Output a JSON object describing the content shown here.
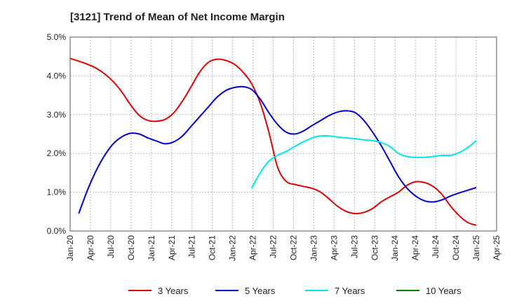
{
  "chart_data": {
    "type": "line",
    "title": "[3121]  Trend of Mean of Net Income Margin",
    "xlabel": "",
    "ylabel": "",
    "ylim": [
      0,
      5
    ],
    "xlim": [
      "Jan-20",
      "Apr-25"
    ],
    "grid": true,
    "legend_position": "bottom",
    "y_ticks": [
      "0.0%",
      "1.0%",
      "2.0%",
      "3.0%",
      "4.0%",
      "5.0%"
    ],
    "x_ticks": [
      "Jan-20",
      "Apr-20",
      "Jul-20",
      "Oct-20",
      "Jan-21",
      "Apr-21",
      "Jul-21",
      "Oct-21",
      "Jan-22",
      "Apr-22",
      "Jul-22",
      "Oct-22",
      "Jan-23",
      "Apr-23",
      "Jul-23",
      "Oct-23",
      "Jan-24",
      "Apr-24",
      "Jul-24",
      "Oct-24",
      "Jan-25",
      "Apr-25"
    ],
    "series": [
      {
        "name": "3 Years",
        "color": "#dd0000",
        "points": [
          [
            0,
            4.45
          ],
          [
            1,
            4.38
          ],
          [
            2,
            4.3
          ],
          [
            3,
            4.2
          ],
          [
            4,
            4.05
          ],
          [
            5,
            3.85
          ],
          [
            6,
            3.58
          ],
          [
            7,
            3.25
          ],
          [
            8,
            2.98
          ],
          [
            9,
            2.85
          ],
          [
            10,
            2.83
          ],
          [
            11,
            2.88
          ],
          [
            12,
            3.05
          ],
          [
            13,
            3.35
          ],
          [
            14,
            3.72
          ],
          [
            15,
            4.1
          ],
          [
            16,
            4.35
          ],
          [
            17,
            4.43
          ],
          [
            18,
            4.4
          ],
          [
            19,
            4.3
          ],
          [
            20,
            4.1
          ],
          [
            21,
            3.8
          ],
          [
            22,
            3.3
          ],
          [
            23,
            2.55
          ],
          [
            24,
            1.65
          ],
          [
            25,
            1.28
          ],
          [
            26,
            1.2
          ],
          [
            27,
            1.15
          ],
          [
            28,
            1.1
          ],
          [
            29,
            1.0
          ],
          [
            30,
            0.82
          ],
          [
            31,
            0.63
          ],
          [
            32,
            0.5
          ],
          [
            33,
            0.45
          ],
          [
            34,
            0.48
          ],
          [
            35,
            0.58
          ],
          [
            36,
            0.75
          ],
          [
            37,
            0.88
          ],
          [
            38,
            1.0
          ],
          [
            39,
            1.18
          ],
          [
            40,
            1.27
          ],
          [
            41,
            1.25
          ],
          [
            42,
            1.15
          ],
          [
            43,
            0.95
          ],
          [
            44,
            0.65
          ],
          [
            45,
            0.4
          ],
          [
            46,
            0.22
          ],
          [
            47,
            0.15
          ]
        ]
      },
      {
        "name": "5 Years",
        "color": "#0000cc",
        "points": [
          [
            1,
            0.45
          ],
          [
            2,
            1.05
          ],
          [
            3,
            1.55
          ],
          [
            4,
            1.95
          ],
          [
            5,
            2.25
          ],
          [
            6,
            2.43
          ],
          [
            7,
            2.52
          ],
          [
            8,
            2.5
          ],
          [
            9,
            2.4
          ],
          [
            10,
            2.32
          ],
          [
            11,
            2.25
          ],
          [
            12,
            2.3
          ],
          [
            13,
            2.45
          ],
          [
            14,
            2.7
          ],
          [
            15,
            2.95
          ],
          [
            16,
            3.2
          ],
          [
            17,
            3.45
          ],
          [
            18,
            3.62
          ],
          [
            19,
            3.7
          ],
          [
            20,
            3.72
          ],
          [
            21,
            3.65
          ],
          [
            22,
            3.4
          ],
          [
            23,
            3.05
          ],
          [
            24,
            2.75
          ],
          [
            25,
            2.55
          ],
          [
            26,
            2.5
          ],
          [
            27,
            2.58
          ],
          [
            28,
            2.72
          ],
          [
            29,
            2.85
          ],
          [
            30,
            2.98
          ],
          [
            31,
            3.07
          ],
          [
            32,
            3.1
          ],
          [
            33,
            3.05
          ],
          [
            34,
            2.85
          ],
          [
            35,
            2.55
          ],
          [
            36,
            2.2
          ],
          [
            37,
            1.8
          ],
          [
            38,
            1.4
          ],
          [
            39,
            1.1
          ],
          [
            40,
            0.9
          ],
          [
            41,
            0.78
          ],
          [
            42,
            0.75
          ],
          [
            43,
            0.8
          ],
          [
            44,
            0.9
          ],
          [
            45,
            0.98
          ],
          [
            46,
            1.05
          ],
          [
            47,
            1.12
          ]
        ]
      },
      {
        "name": "7 Years",
        "color": "#00e5e5",
        "points": [
          [
            21,
            1.1
          ],
          [
            22,
            1.5
          ],
          [
            23,
            1.8
          ],
          [
            24,
            1.95
          ],
          [
            25,
            2.05
          ],
          [
            26,
            2.18
          ],
          [
            27,
            2.3
          ],
          [
            28,
            2.4
          ],
          [
            29,
            2.45
          ],
          [
            30,
            2.45
          ],
          [
            31,
            2.42
          ],
          [
            32,
            2.4
          ],
          [
            33,
            2.38
          ],
          [
            34,
            2.35
          ],
          [
            35,
            2.33
          ],
          [
            36,
            2.28
          ],
          [
            37,
            2.18
          ],
          [
            38,
            2.0
          ],
          [
            39,
            1.92
          ],
          [
            40,
            1.9
          ],
          [
            41,
            1.9
          ],
          [
            42,
            1.92
          ],
          [
            43,
            1.95
          ],
          [
            44,
            1.95
          ],
          [
            45,
            2.02
          ],
          [
            46,
            2.15
          ],
          [
            47,
            2.33
          ]
        ]
      },
      {
        "name": "10 Years",
        "color": "#008000",
        "points": []
      }
    ]
  }
}
